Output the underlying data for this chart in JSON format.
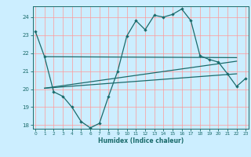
{
  "title": "",
  "xlabel": "Humidex (Indice chaleur)",
  "bg_color": "#cceeff",
  "grid_color": "#ff9999",
  "line_color": "#1a6b6b",
  "xlim": [
    0,
    23
  ],
  "ylim": [
    17.8,
    24.6
  ],
  "xticks": [
    0,
    1,
    2,
    3,
    4,
    5,
    6,
    7,
    8,
    9,
    10,
    11,
    12,
    13,
    14,
    15,
    16,
    17,
    18,
    19,
    20,
    21,
    22,
    23
  ],
  "yticks": [
    18,
    19,
    20,
    21,
    22,
    23,
    24
  ],
  "main_x": [
    0,
    1,
    2,
    3,
    4,
    5,
    6,
    7,
    8,
    9,
    10,
    11,
    12,
    13,
    14,
    15,
    16,
    17,
    18,
    19,
    20,
    21,
    22,
    23
  ],
  "main_y": [
    23.2,
    21.8,
    19.85,
    19.6,
    19.0,
    18.2,
    17.85,
    18.1,
    19.6,
    21.0,
    22.95,
    23.8,
    23.3,
    24.1,
    24.0,
    24.15,
    24.45,
    23.8,
    21.85,
    21.65,
    21.5,
    20.85,
    20.15,
    20.6
  ],
  "trend1_x": [
    1,
    22
  ],
  "trend1_y": [
    21.8,
    21.75
  ],
  "trend2_x": [
    1,
    22
  ],
  "trend2_y": [
    20.05,
    21.55
  ],
  "trend3_x": [
    1,
    22
  ],
  "trend3_y": [
    20.05,
    20.85
  ]
}
